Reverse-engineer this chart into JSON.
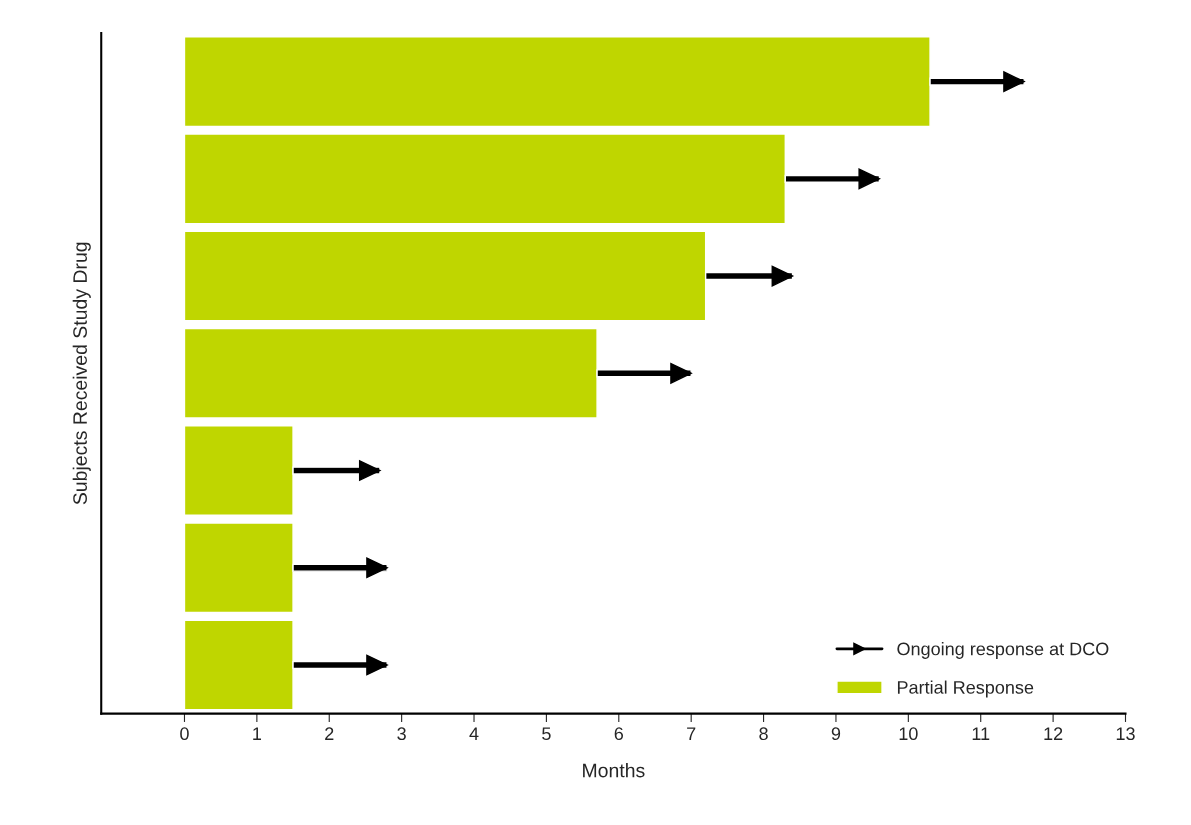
{
  "chart_data": {
    "type": "bar",
    "orientation": "horizontal",
    "stacked": true,
    "xlabel": "Months",
    "ylabel": "Subjects Received Study Drug",
    "categories": [
      null,
      null,
      null,
      null,
      null,
      null,
      null
    ],
    "series": [
      {
        "name": "Partial Response",
        "color": "#bfd600",
        "values": [
          10.3,
          8.3,
          7.2,
          5.7,
          1.5,
          1.5,
          1.5
        ]
      },
      {
        "name": "Ongoing response at DCO",
        "color": "#000000",
        "marker": "triangle",
        "values": [
          1.3,
          1.3,
          1.2,
          1.3,
          1.2,
          1.3,
          1.3
        ]
      }
    ],
    "xlim": [
      -1.15,
      13
    ],
    "xticks": [
      0,
      1,
      2,
      3,
      4,
      5,
      6,
      7,
      8,
      9,
      10,
      11,
      12,
      13
    ],
    "grid": false,
    "legend": "bottom right"
  }
}
